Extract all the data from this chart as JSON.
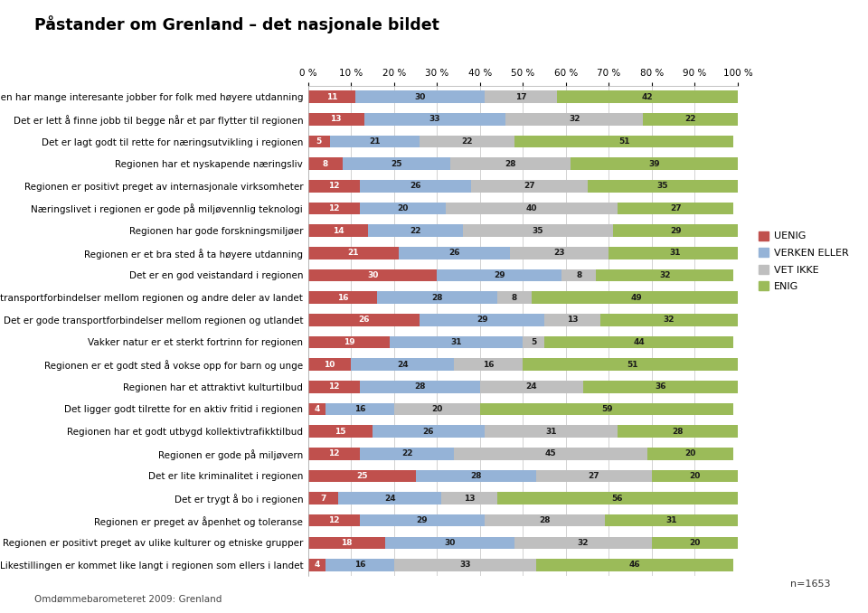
{
  "title": "Påstander om Grenland – det nasjonale bildet",
  "categories": [
    "Regionen har mange interesante jobber for folk med høyere utdanning",
    "Det er lett å finne jobb til begge når et par flytter til regionen",
    "Det er lagt godt til rette for næringsutvikling i regionen",
    "Regionen har et nyskapende næringsliv",
    "Regionen er positivt preget av internasjonale virksomheter",
    "Næringslivet i regionen er gode på miljøvennlig teknologi",
    "Regionen har gode forskningsmiljøer",
    "Regionen er et bra sted å ta høyere utdanning",
    "Det er en god veistandard i regionen",
    "Det er gode transportforbindelser mellom regionen og andre deler av landet",
    "Det er gode transportforbindelser mellom regionen og utlandet",
    "Vakker natur er et sterkt fortrinn for regionen",
    "Regionen er et godt sted å vokse opp for barn og unge",
    "Regionen har et attraktivt kulturtilbud",
    "Det ligger godt tilrette for en aktiv fritid i regionen",
    "Regionen har et godt utbygd kollektivtrafikktilbud",
    "Regionen er gode på miljøvern",
    "Det er lite kriminalitet i regionen",
    "Det er trygt å bo i regionen",
    "Regionen er preget av åpenhet og toleranse",
    "Regionen er positivt preget av ulike kulturer og etniske grupper",
    "Likestillingen er kommet like langt i regionen som ellers i landet"
  ],
  "uenig": [
    11,
    13,
    5,
    8,
    12,
    12,
    14,
    21,
    30,
    16,
    26,
    19,
    10,
    12,
    4,
    15,
    12,
    25,
    7,
    12,
    18,
    4
  ],
  "verken_eller": [
    30,
    33,
    21,
    25,
    26,
    20,
    22,
    26,
    29,
    28,
    29,
    31,
    24,
    28,
    16,
    26,
    22,
    28,
    24,
    29,
    30,
    16
  ],
  "vet_ikke": [
    17,
    32,
    22,
    28,
    27,
    40,
    35,
    23,
    8,
    8,
    13,
    5,
    16,
    24,
    20,
    31,
    45,
    27,
    13,
    28,
    32,
    33
  ],
  "enig": [
    42,
    22,
    51,
    39,
    35,
    27,
    29,
    31,
    32,
    49,
    32,
    44,
    51,
    36,
    59,
    28,
    20,
    20,
    56,
    31,
    20,
    46
  ],
  "color_uenig": "#c0504d",
  "color_verken": "#95b3d7",
  "color_vet": "#bfbfbf",
  "color_enig": "#9bbb59",
  "legend_labels": [
    "UENIG",
    "VERKEN ELLER",
    "VET IKKE",
    "ENIG"
  ],
  "xlabel_ticks": [
    0,
    10,
    20,
    30,
    40,
    50,
    60,
    70,
    80,
    90,
    100
  ],
  "footer_left": "Omdømmebarometeret 2009: Grenland",
  "footer_right": "n=1653",
  "bar_height": 0.55
}
